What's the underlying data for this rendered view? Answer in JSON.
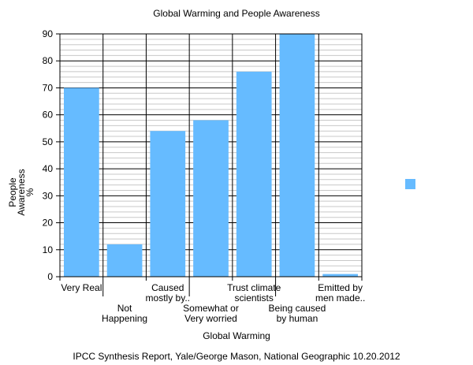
{
  "chart_data": {
    "type": "bar",
    "title": "Global Warming and People Awareness",
    "xlabel": "Global Warming",
    "ylabel": [
      "People",
      "Awareness",
      "%"
    ],
    "source": "IPCC Synthesis Report, Yale/George Mason, National Geographic 10.20.2012",
    "categories": [
      [
        "Very Real"
      ],
      [
        "Not",
        "Happening"
      ],
      [
        "Caused",
        "mostly by.."
      ],
      [
        "Somewhat or",
        "Very worried"
      ],
      [
        "Trust climate",
        "scientists"
      ],
      [
        "Being caused",
        "by human"
      ],
      [
        "Emitted by",
        "men made.."
      ]
    ],
    "values": [
      70,
      12,
      54,
      58,
      76,
      90,
      1
    ],
    "ylim": [
      0,
      90
    ],
    "yticks": [
      0,
      10,
      20,
      30,
      40,
      50,
      60,
      70,
      80,
      90
    ],
    "grid": true,
    "bar_color": "#66bbff",
    "legend": {
      "placement": "right",
      "swatch_color": "#66bbff"
    }
  }
}
